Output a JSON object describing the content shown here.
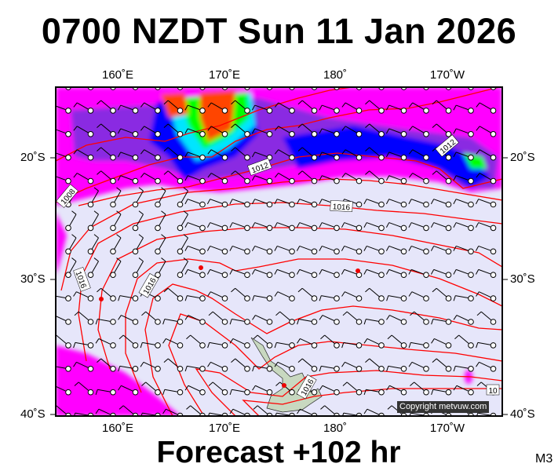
{
  "title": "0700 NZDT Sun 11 Jan 2026",
  "footer": "Forecast +102 hr",
  "model_label": "M3",
  "copyright": "Copyright metvuw.com",
  "longitude_labels": [
    "160˚E",
    "170˚E",
    "180˚",
    "170˚W"
  ],
  "latitude_labels": [
    "20˚S",
    "30˚S",
    "40˚S"
  ],
  "isobar_labels": [
    "1008",
    "1012",
    "1012",
    "1016",
    "1016",
    "1016",
    "1016",
    "1016",
    "10"
  ],
  "colors": {
    "background": "#e6e6fa",
    "isobar": "#ff0000",
    "rain_light": "#ff00ff",
    "rain_mid": "#8a2be2",
    "rain_blue": "#0000ff",
    "rain_cyan": "#00e5ff",
    "rain_green": "#00ff00",
    "rain_heavy": "#ff4500",
    "land": "#c8d8c0"
  }
}
